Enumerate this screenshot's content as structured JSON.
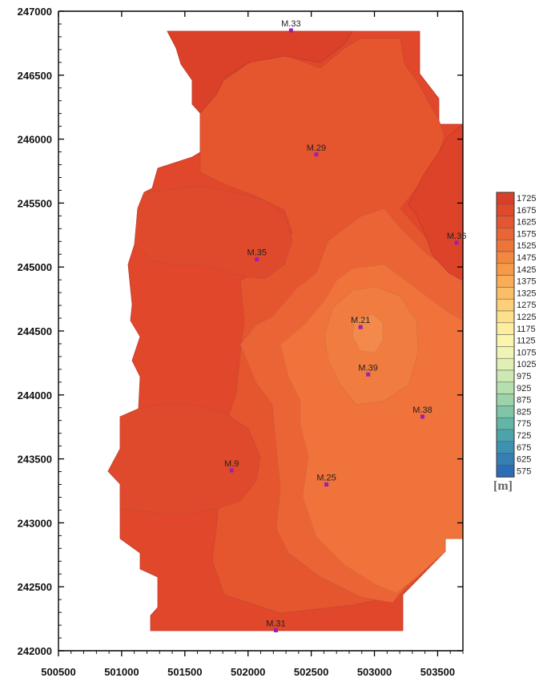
{
  "chart_data": {
    "type": "contour-map",
    "x_axis": {
      "range": [
        500500,
        503700
      ],
      "ticks": [
        "500500",
        "501000",
        "501500",
        "502000",
        "502500",
        "503000",
        "503500"
      ],
      "tick_values": [
        500500,
        501000,
        501500,
        502000,
        502500,
        503000,
        503500
      ]
    },
    "y_axis": {
      "range": [
        242000,
        247000
      ],
      "ticks": [
        "242000",
        "242500",
        "243000",
        "243500",
        "244000",
        "244500",
        "245000",
        "245500",
        "246000",
        "246500",
        "247000"
      ],
      "tick_values": [
        242000,
        242500,
        243000,
        243500,
        244000,
        244500,
        245000,
        245500,
        246000,
        246500,
        247000
      ]
    },
    "wells": [
      {
        "name": "M.33",
        "x": 502340,
        "y": 246850
      },
      {
        "name": "M.29",
        "x": 502540,
        "y": 245880
      },
      {
        "name": "M.36",
        "x": 503650,
        "y": 245190
      },
      {
        "name": "M.35",
        "x": 502070,
        "y": 245060
      },
      {
        "name": "M.21",
        "x": 502890,
        "y": 244530
      },
      {
        "name": "M.39",
        "x": 502950,
        "y": 244160
      },
      {
        "name": "M.38",
        "x": 503380,
        "y": 243830
      },
      {
        "name": "M.9",
        "x": 501870,
        "y": 243410
      },
      {
        "name": "M.25",
        "x": 502620,
        "y": 243300
      },
      {
        "name": "M.31",
        "x": 502220,
        "y": 242160
      }
    ],
    "legend": {
      "unit": "[m]",
      "levels": [
        "1725",
        "1675",
        "1625",
        "1575",
        "1525",
        "1475",
        "1425",
        "1375",
        "1325",
        "1275",
        "1225",
        "1175",
        "1125",
        "1075",
        "1025",
        "975",
        "925",
        "875",
        "825",
        "775",
        "725",
        "675",
        "625",
        "575"
      ],
      "colors": [
        "#d9402a",
        "#df4a2d",
        "#e45631",
        "#e96535",
        "#ee7539",
        "#f2873f",
        "#f59a48",
        "#f8ad56",
        "#fabf66",
        "#fcd078",
        "#fde08b",
        "#fded9e",
        "#fbf5ae",
        "#f1f5b3",
        "#e1efb5",
        "#cde8b2",
        "#b5dfae",
        "#9bd3aa",
        "#7fc6a8",
        "#62b6a8",
        "#4ca4ab",
        "#3e92b1",
        "#357fb4",
        "#2c6db5"
      ]
    }
  }
}
